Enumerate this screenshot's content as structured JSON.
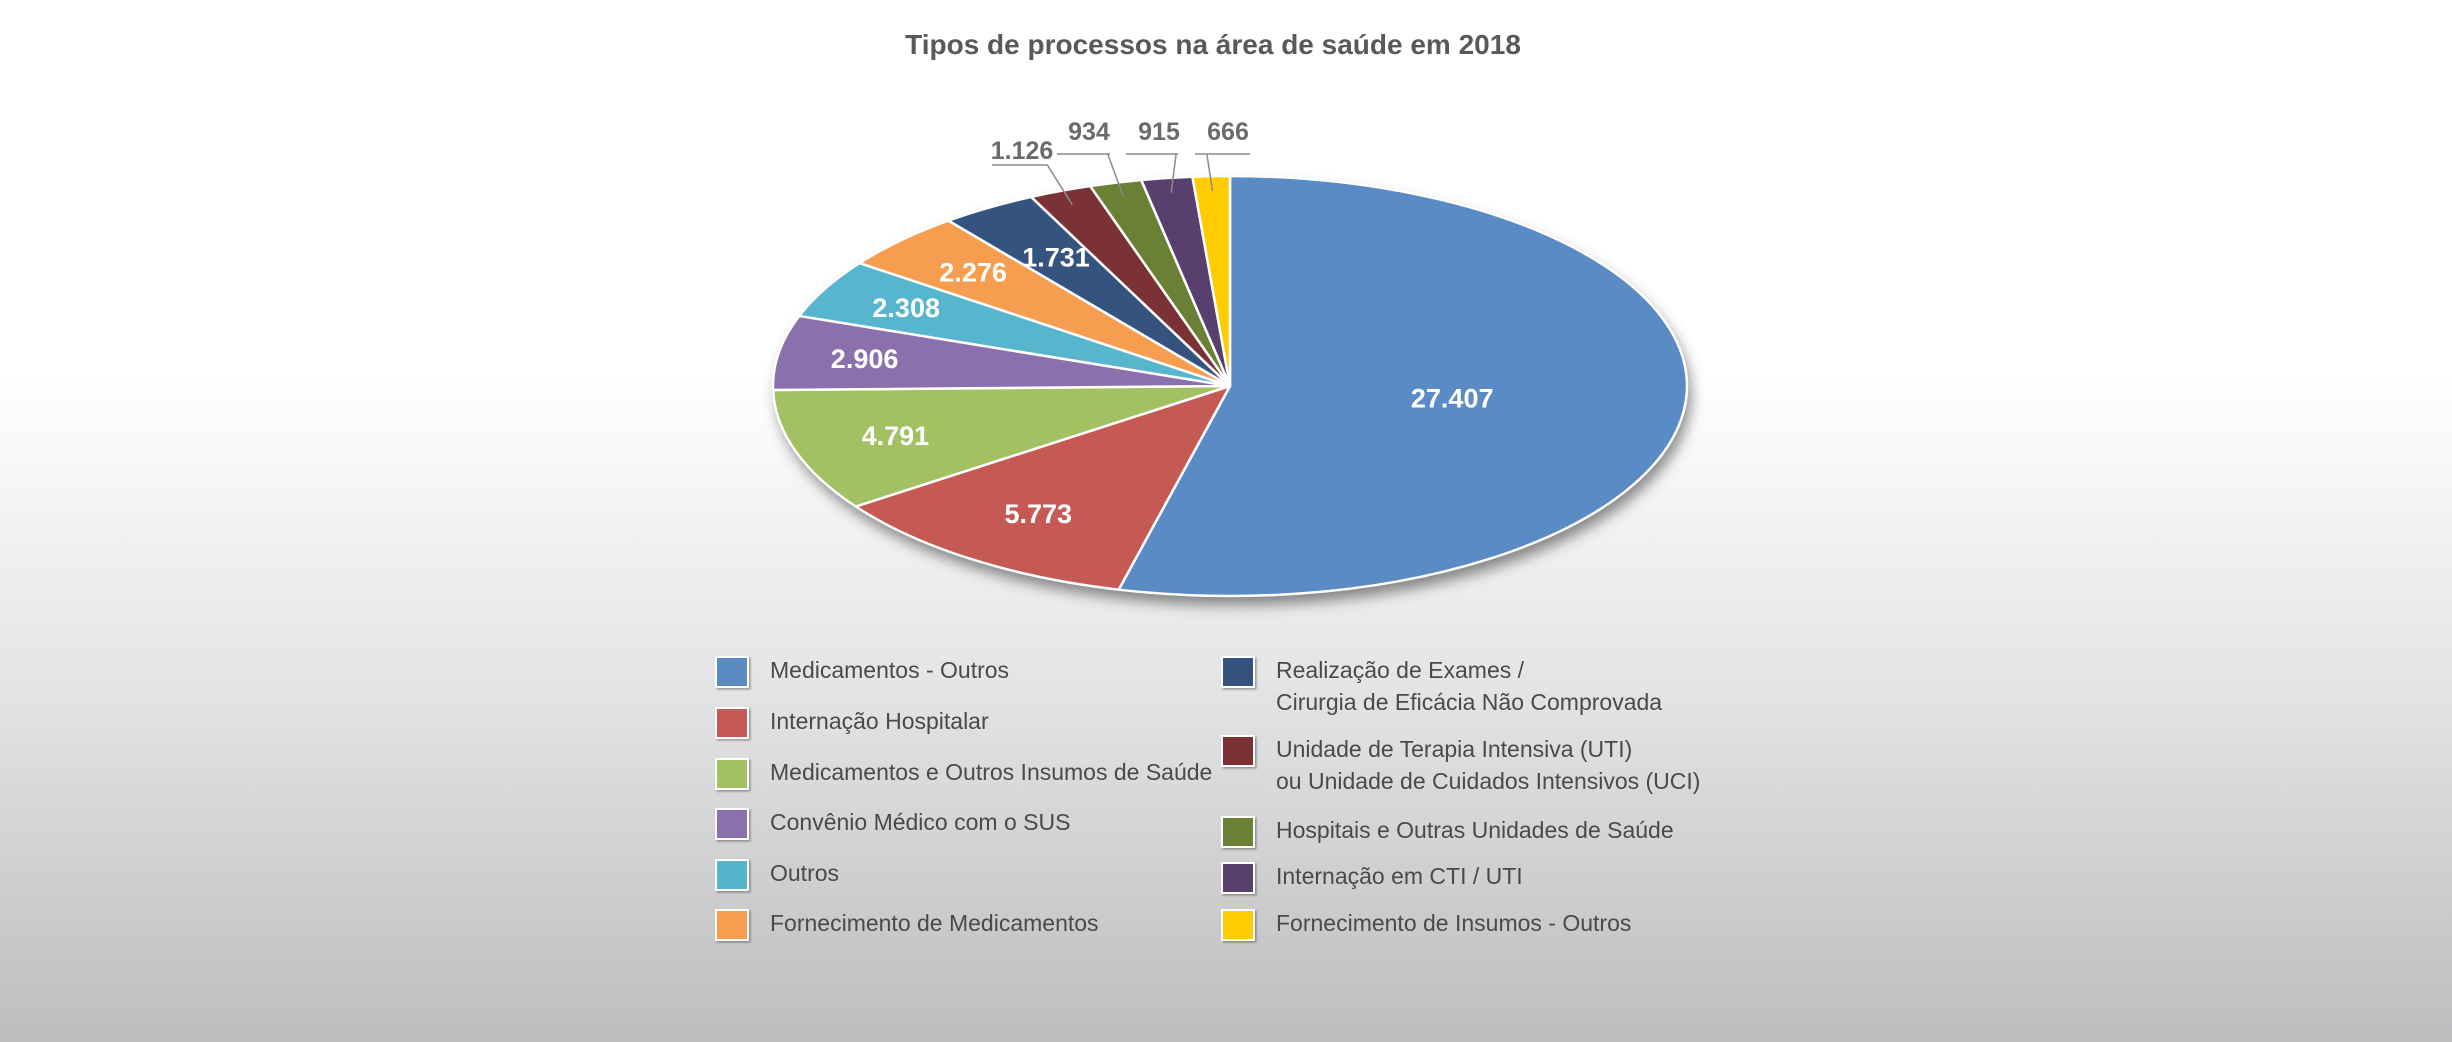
{
  "chart_data": {
    "type": "pie",
    "title": "Tipos de processos na área de saúde em 2018",
    "slices": [
      {
        "label": "Medicamentos - Outros",
        "value": 27407,
        "display": "27.407",
        "color": "#5b8bc4"
      },
      {
        "label": "Internação Hospitalar",
        "value": 5773,
        "display": "5.773",
        "color": "#c55a55"
      },
      {
        "label": "Medicamentos e Outros Insumos de Saúde",
        "value": 4791,
        "display": "4.791",
        "color": "#a3c163"
      },
      {
        "label": "Convênio Médico com o SUS",
        "value": 2906,
        "display": "2.906",
        "color": "#8a70ad"
      },
      {
        "label": "Outros",
        "value": 2308,
        "display": "2.308",
        "color": "#57b5cd"
      },
      {
        "label": "Fornecimento de Medicamentos",
        "value": 2276,
        "display": "2.276",
        "color": "#f69d4f"
      },
      {
        "label": [
          "Realização de Exames /",
          "Cirurgia de Eficácia Não Comprovada"
        ],
        "value": 1731,
        "display": "1.731",
        "color": "#34537e"
      },
      {
        "label": [
          "Unidade de Terapia Intensiva (UTI)",
          "ou Unidade de Cuidados Intensivos (UCI)"
        ],
        "value": 1126,
        "display": "1.126",
        "color": "#7b3236"
      },
      {
        "label": "Hospitais e Outras Unidades de Saúde",
        "value": 934,
        "display": "934",
        "color": "#6a8035"
      },
      {
        "label": "Internação em CTI / UTI",
        "value": 915,
        "display": "915",
        "color": "#583f6e"
      },
      {
        "label": "Fornecimento de Insumos - Outros",
        "value": 666,
        "display": "666",
        "color": "#ffcc00"
      }
    ],
    "legend_placement": "bottom, two columns",
    "label_colors": {
      "inside": "#ffffff",
      "outside": "#6b6b6b"
    }
  }
}
